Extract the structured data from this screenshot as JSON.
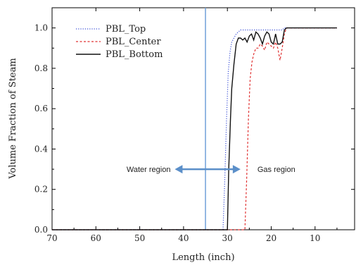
{
  "chart_data": {
    "type": "line",
    "xlabel": "Length (inch)",
    "ylabel": "Volume Fraction of Steam",
    "xlim": [
      70,
      0
    ],
    "ylim": [
      0,
      1.1
    ],
    "x_reversed": true,
    "xticks": [
      "70",
      "60",
      "50",
      "40",
      "30",
      "20",
      "10",
      "0"
    ],
    "yticks": [
      "0.0",
      "0.2",
      "0.4",
      "0.6",
      "0.8",
      "1.0"
    ],
    "legend_position": "top-left",
    "series": [
      {
        "name": "PBL_Top",
        "color": "#3a4fd6",
        "style": "dotted",
        "x": [
          70,
          31,
          30.6,
          30.2,
          29.8,
          29.4,
          29,
          28.5,
          28,
          27,
          26,
          25,
          24,
          23,
          22,
          21,
          20,
          19,
          18,
          17.5,
          17,
          16,
          10,
          5
        ],
        "y": [
          0,
          0,
          0.25,
          0.55,
          0.78,
          0.88,
          0.93,
          0.95,
          0.97,
          0.99,
          0.99,
          0.99,
          0.99,
          0.99,
          0.99,
          0.99,
          0.99,
          0.99,
          0.99,
          0.99,
          1.0,
          1.0,
          1.0,
          1.0
        ]
      },
      {
        "name": "PBL_Center",
        "color": "#e03030",
        "style": "dashed",
        "x": [
          70,
          26,
          25.6,
          25.2,
          24.8,
          24.4,
          24,
          23.5,
          23,
          22.5,
          22,
          21.5,
          21,
          20.5,
          20,
          19.5,
          19,
          18.5,
          18,
          17.5,
          17,
          16.5,
          16,
          10,
          5
        ],
        "y": [
          0,
          0,
          0.25,
          0.55,
          0.75,
          0.83,
          0.87,
          0.9,
          0.9,
          0.92,
          0.91,
          0.89,
          0.93,
          0.92,
          0.91,
          0.9,
          0.93,
          0.9,
          0.84,
          0.9,
          0.97,
          1.0,
          1.0,
          1.0,
          1.0
        ]
      },
      {
        "name": "PBL_Bottom",
        "color": "#111111",
        "style": "solid",
        "x": [
          70,
          30,
          29.7,
          29.3,
          29,
          28.5,
          28,
          27.5,
          27,
          26.5,
          26,
          25.5,
          25,
          24.5,
          24,
          23.5,
          23,
          22.5,
          22,
          21.5,
          21,
          20.5,
          20,
          19.5,
          19,
          18.5,
          18,
          17.5,
          17,
          16.5,
          16,
          10,
          5
        ],
        "y": [
          0,
          0,
          0.3,
          0.55,
          0.7,
          0.82,
          0.92,
          0.95,
          0.95,
          0.94,
          0.95,
          0.93,
          0.96,
          0.97,
          0.94,
          0.98,
          0.97,
          0.95,
          0.92,
          0.96,
          0.98,
          0.97,
          0.93,
          0.92,
          0.97,
          0.92,
          0.92,
          0.93,
          0.99,
          1.0,
          1.0,
          1.0,
          1.0
        ]
      }
    ],
    "vertical_line": {
      "x": 35,
      "color": "#6fa0d8"
    },
    "annotations": {
      "left_text": "Water region",
      "right_text": "Gas region",
      "arrow_color": "#5b8fc9",
      "arrow_from": 42,
      "arrow_to": 27,
      "arrow_y": 0.3
    }
  }
}
